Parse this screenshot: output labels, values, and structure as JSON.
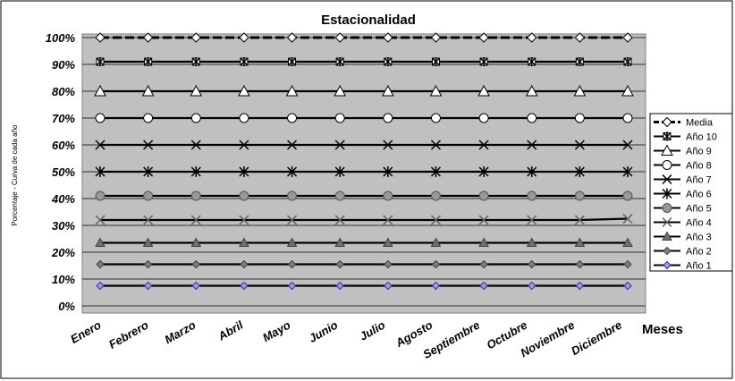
{
  "chart_data": {
    "type": "line",
    "title": "Estacionalidad",
    "xlabel": "Meses",
    "ylabel": "Porcentaje - Curva de cada año",
    "categories": [
      "Enero",
      "Febrero",
      "Marzo",
      "Abril",
      "Mayo",
      "Junio",
      "Julio",
      "Agosto",
      "Septiembre",
      "Octubre",
      "Noviembre",
      "Diciembre"
    ],
    "yticks": [
      "0%",
      "10%",
      "20%",
      "30%",
      "40%",
      "50%",
      "60%",
      "70%",
      "80%",
      "90%",
      "100%"
    ],
    "ylim": [
      0,
      100
    ],
    "grid": true,
    "legend_position": "right",
    "plot_background": "#c0c0c0",
    "series": [
      {
        "name": "Media",
        "marker": "diamond-open",
        "line": "dashed",
        "values": [
          100,
          100,
          100,
          100,
          100,
          100,
          100,
          100,
          100,
          100,
          100,
          100
        ]
      },
      {
        "name": "Año 10",
        "marker": "star-square",
        "line": "solid",
        "values": [
          91,
          91,
          91,
          91,
          91,
          91,
          91,
          91,
          91,
          91,
          91,
          91
        ]
      },
      {
        "name": "Año 9",
        "marker": "triangle-open",
        "line": "solid",
        "values": [
          80,
          80,
          80,
          80,
          80,
          80,
          80,
          80,
          80,
          80,
          80,
          80
        ]
      },
      {
        "name": "Año 8",
        "marker": "circle-open",
        "line": "solid",
        "values": [
          70,
          70,
          70,
          70,
          70,
          70,
          70,
          70,
          70,
          70,
          70,
          70
        ]
      },
      {
        "name": "Año 7",
        "marker": "x",
        "line": "solid",
        "values": [
          60,
          60,
          60,
          60,
          60,
          60,
          60,
          60,
          60,
          60,
          60,
          60
        ]
      },
      {
        "name": "Año 6",
        "marker": "asterisk",
        "line": "solid",
        "values": [
          50,
          50,
          50,
          50,
          50,
          50,
          50,
          50,
          50,
          50,
          50,
          50
        ]
      },
      {
        "name": "Año 5",
        "marker": "circle-gray",
        "line": "solid",
        "values": [
          41,
          41,
          41,
          41,
          41,
          41,
          41,
          41,
          41,
          41,
          41,
          41
        ]
      },
      {
        "name": "Año 4",
        "marker": "x-gray",
        "line": "solid",
        "values": [
          32,
          32,
          32,
          32,
          32,
          32,
          32,
          32,
          32,
          32,
          32,
          32.5
        ]
      },
      {
        "name": "Año 3",
        "marker": "triangle-gray",
        "line": "solid",
        "values": [
          23.5,
          23.5,
          23.5,
          23.5,
          23.5,
          23.5,
          23.5,
          23.5,
          23.5,
          23.5,
          23.5,
          23.5
        ]
      },
      {
        "name": "Año 2",
        "marker": "diamond-gray",
        "line": "solid",
        "values": [
          15.5,
          15.5,
          15.5,
          15.5,
          15.5,
          15.5,
          15.5,
          15.5,
          15.5,
          15.5,
          15.5,
          15.5
        ]
      },
      {
        "name": "Año 1",
        "marker": "diamond-blue",
        "line": "solid",
        "values": [
          7.5,
          7.5,
          7.5,
          7.5,
          7.5,
          7.5,
          7.5,
          7.5,
          7.5,
          7.5,
          7.5,
          7.5
        ]
      }
    ]
  }
}
